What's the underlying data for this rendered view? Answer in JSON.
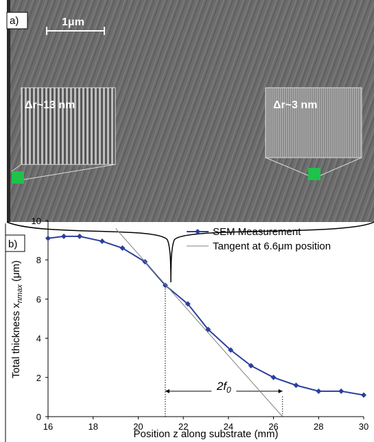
{
  "panel_a": {
    "label": "a)",
    "scale_bar": "1μm",
    "inset_left": "Δr~13 nm",
    "inset_right": "Δr~3 nm"
  },
  "chart_data": {
    "type": "line",
    "panel_label": "b)",
    "x_label": "Position z along substrate (mm)",
    "y_label": [
      "Total thickness x",
      "nmax",
      " (μm)"
    ],
    "xlim": [
      16,
      30
    ],
    "xticks": [
      16,
      18,
      20,
      22,
      24,
      26,
      28,
      30
    ],
    "ylim": [
      0,
      10
    ],
    "yticks": [
      0,
      2,
      4,
      6,
      8,
      10
    ],
    "grid": false,
    "legend": "top-right",
    "series": [
      {
        "name": "SEM Measurement",
        "color": "#2a3f9c",
        "marker": "diamond",
        "x": [
          16,
          16.7,
          17.4,
          18.4,
          19.3,
          20.3,
          21.2,
          22.2,
          23.1,
          24.1,
          25.0,
          26.0,
          27.0,
          28.0,
          29.0,
          30.0
        ],
        "values": [
          9.1,
          9.2,
          9.2,
          8.95,
          8.6,
          7.9,
          6.7,
          5.75,
          4.45,
          3.4,
          2.6,
          2.0,
          1.6,
          1.3,
          1.3,
          1.1
        ]
      },
      {
        "name": "Tangent at 6.6μm position",
        "color": "#808080",
        "marker": "none",
        "x": [
          19,
          26.4
        ],
        "values": [
          9.6,
          0
        ]
      }
    ],
    "guides": [
      {
        "x": 21.2,
        "y": [
          0,
          6.7
        ]
      },
      {
        "x": 26.4,
        "y": [
          0,
          1.1
        ]
      }
    ],
    "annotation": {
      "text": [
        "2f",
        "0"
      ],
      "x": [
        21.2,
        26.4
      ],
      "y": 1.3
    }
  }
}
